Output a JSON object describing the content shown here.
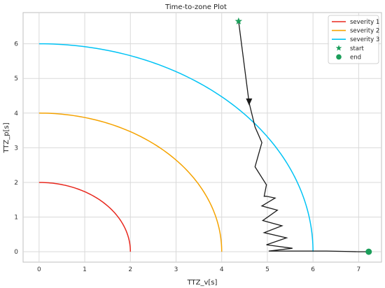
{
  "chart_data": {
    "type": "line",
    "title": "Time-to-zone Plot",
    "xlabel": "TTZ_v[s]",
    "ylabel": "TTZ_p[s]",
    "xlim": [
      -0.35,
      7.5
    ],
    "ylim": [
      -0.3,
      6.9
    ],
    "xticks": [
      0,
      1,
      2,
      3,
      4,
      5,
      6,
      7
    ],
    "yticks": [
      0,
      1,
      2,
      3,
      4,
      5,
      6
    ],
    "grid": true,
    "legend_position": "top-right",
    "colors": {
      "severity_1": "#e8281e",
      "severity_2": "#f5a300",
      "severity_3": "#00c3f5",
      "trajectory": "#1a1a1a",
      "markers": "#1b9e5a",
      "grid": "#d9d9d9",
      "frame": "#bfbfbf"
    },
    "series": [
      {
        "name": "severity 1",
        "kind": "quarter-circle",
        "radius": 2
      },
      {
        "name": "severity 2",
        "kind": "quarter-circle",
        "radius": 4
      },
      {
        "name": "severity 3",
        "kind": "quarter-circle",
        "radius": 6
      },
      {
        "name": "trajectory",
        "x": [
          4.37,
          4.6,
          4.73,
          4.88,
          4.73,
          4.98,
          4.93,
          4.98,
          5.17,
          4.88,
          5.22,
          4.9,
          5.32,
          4.93,
          5.42,
          4.98,
          5.55,
          5.03,
          5.7,
          5.9,
          6.3,
          6.7,
          7.0,
          7.22
        ],
        "y": [
          6.65,
          4.3,
          3.6,
          3.15,
          2.45,
          1.93,
          1.6,
          1.6,
          1.55,
          1.32,
          1.2,
          0.9,
          0.75,
          0.55,
          0.4,
          0.2,
          0.1,
          0.02,
          0.02,
          0.02,
          0.02,
          0.01,
          0.0,
          0.0
        ]
      },
      {
        "name": "start",
        "x": [
          4.37
        ],
        "y": [
          6.65
        ],
        "marker": "star"
      },
      {
        "name": "end",
        "x": [
          7.22
        ],
        "y": [
          0.0
        ],
        "marker": "circle"
      }
    ],
    "arrow": {
      "at_index": 1,
      "direction": "down"
    },
    "legend": [
      {
        "label": "severity 1",
        "symbol": "line",
        "color_key": "severity_1"
      },
      {
        "label": "severity 2",
        "symbol": "line",
        "color_key": "severity_2"
      },
      {
        "label": "severity 3",
        "symbol": "line",
        "color_key": "severity_3"
      },
      {
        "label": "start",
        "symbol": "star",
        "color_key": "markers"
      },
      {
        "label": "end",
        "symbol": "circle",
        "color_key": "markers"
      }
    ]
  }
}
